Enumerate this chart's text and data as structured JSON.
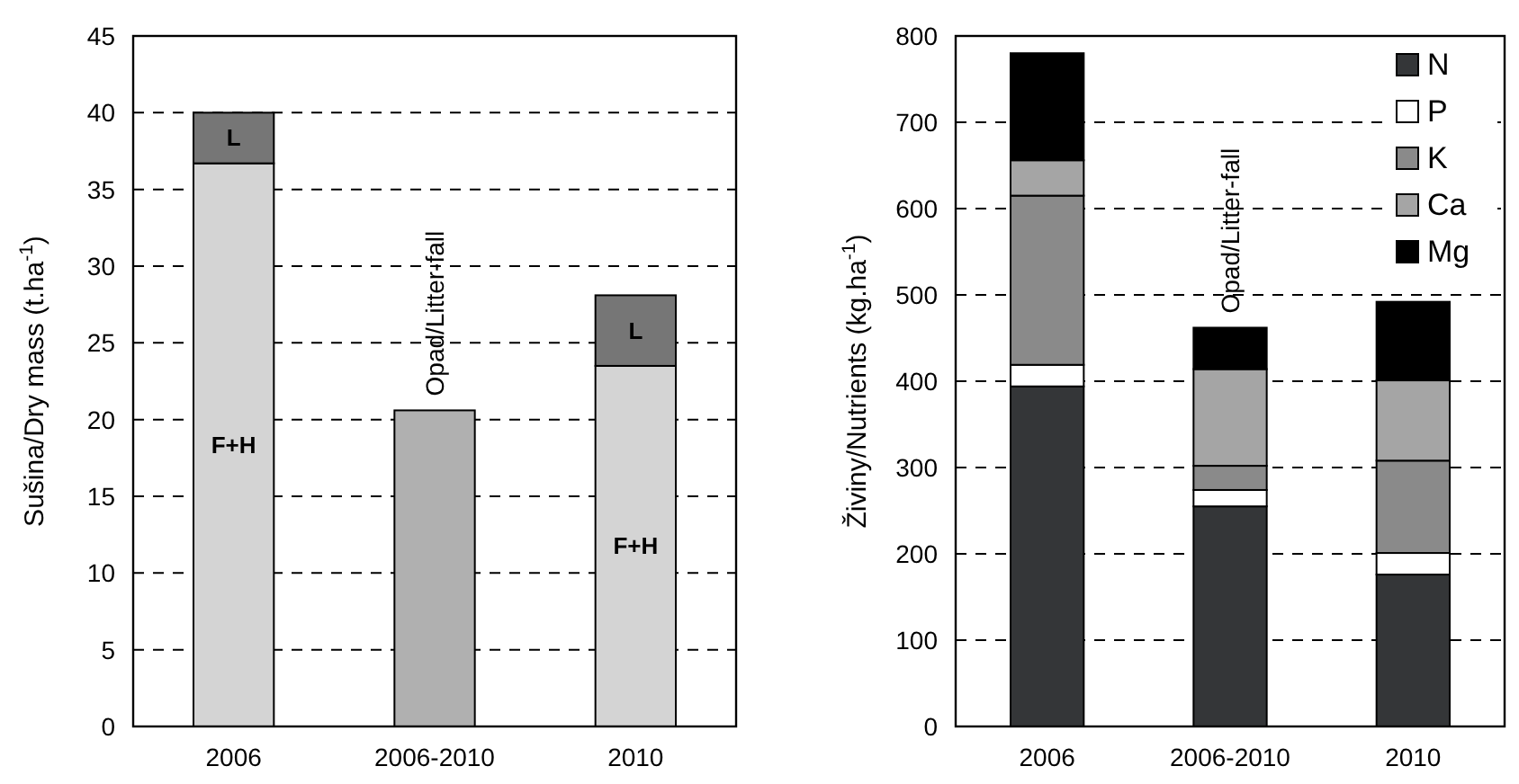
{
  "chart_data": [
    {
      "type": "bar",
      "stacked": true,
      "ylabel": "Sušina/Dry mass (t.ha$^{-1}$)",
      "categories": [
        "2006",
        "2006-2010",
        "2010"
      ],
      "series": [
        {
          "name": "F+H",
          "color": "#d4d4d4",
          "values": [
            36.7,
            null,
            23.5
          ]
        },
        {
          "name": "L",
          "color": "#767676",
          "values": [
            3.3,
            null,
            4.6
          ]
        },
        {
          "color": "#b0b0b0",
          "values": [
            null,
            20.6,
            null
          ]
        }
      ],
      "ylim": [
        0,
        45
      ],
      "yticks": [
        0,
        5,
        10,
        15,
        20,
        25,
        30,
        35,
        40,
        45
      ],
      "grid": "y",
      "legend": false,
      "annotations": [
        {
          "text": "Opad/Litter-fall",
          "x": "2006-2010",
          "y": 20.6
        }
      ]
    },
    {
      "type": "bar",
      "stacked": true,
      "ylabel": "Živiny/Nutrients (kg.ha$^{-1}$)",
      "categories": [
        "2006",
        "2006-2010",
        "2010"
      ],
      "series": [
        {
          "name": "N",
          "color": "#343638",
          "values": [
            394,
            255,
            176
          ]
        },
        {
          "name": "P",
          "color": "#ffffff",
          "values": [
            25,
            19,
            25
          ]
        },
        {
          "name": "K",
          "color": "#8a8a8a",
          "values": [
            196,
            28,
            107
          ]
        },
        {
          "name": "Ca",
          "color": "#a5a5a5",
          "values": [
            41,
            112,
            93
          ]
        },
        {
          "name": "Mg",
          "color": "#000000",
          "values": [
            124,
            48,
            91
          ]
        }
      ],
      "ylim": [
        0,
        800
      ],
      "yticks": [
        0,
        100,
        200,
        300,
        400,
        500,
        600,
        700,
        800
      ],
      "grid": "y",
      "legend": "top right",
      "annotations": [
        {
          "text": "Opad/Litter-fall",
          "x": "2006-2010",
          "y": 462
        }
      ]
    }
  ]
}
